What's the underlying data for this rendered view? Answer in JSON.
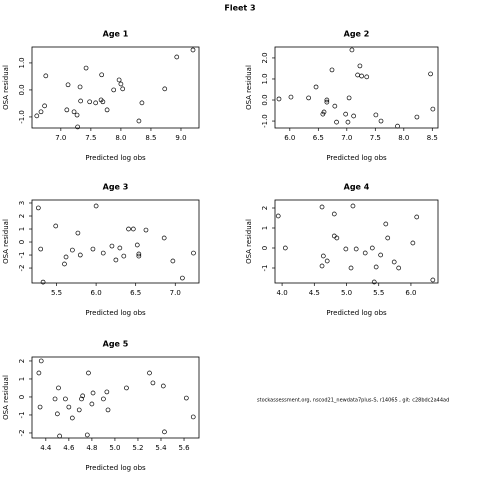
{
  "title": "Fleet 3",
  "footer": "stockassessment.org, nscod21_newdata7plus-S, r14065 , git: c28bdc2a44ad",
  "chart_data": [
    {
      "type": "scatter",
      "title": "Age 1",
      "x_label": "Predicted log obs",
      "y_label": "OSA residual",
      "color": "#000000",
      "x": [
        6.6,
        6.67,
        6.73,
        6.75,
        7.1,
        7.12,
        7.22,
        7.27,
        7.28,
        7.32,
        7.33,
        7.42,
        7.48,
        7.58,
        7.67,
        7.68,
        7.7,
        7.77,
        7.88,
        7.97,
        8.0,
        8.03,
        8.3,
        8.35,
        8.73,
        8.93,
        9.2
      ],
      "y": [
        -0.96,
        -0.81,
        -0.59,
        0.52,
        -0.74,
        0.19,
        -0.81,
        -0.93,
        -1.37,
        0.11,
        -0.41,
        0.81,
        -0.44,
        -0.48,
        -0.37,
        0.56,
        -0.44,
        -0.74,
        0,
        0.37,
        0.22,
        0.04,
        -1.15,
        -0.48,
        0.04,
        1.22,
        1.48
      ],
      "xlim": [
        6.52,
        9.3
      ],
      "ylim": [
        -1.41,
        1.59
      ],
      "xticks": [
        {
          "value": 7,
          "label": "7.0"
        },
        7.5,
        {
          "value": 8,
          "label": "8.0"
        },
        8.5,
        {
          "value": 9,
          "label": "9.0"
        }
      ],
      "yticks": [
        {
          "value": -1,
          "label": "-1.0"
        },
        {
          "value": 0,
          "label": "0.0"
        },
        {
          "value": 1,
          "label": "1.0"
        }
      ]
    },
    {
      "type": "scatter",
      "title": "Age 2",
      "x_label": "Predicted log obs",
      "y_label": "OSA residual",
      "color": "#000000",
      "x": [
        5.81,
        6.02,
        6.33,
        6.46,
        6.58,
        6.6,
        6.65,
        6.65,
        6.74,
        6.79,
        6.82,
        6.98,
        7.02,
        7.04,
        7.09,
        7.12,
        7.19,
        7.23,
        7.26,
        7.35,
        7.51,
        7.6,
        7.89,
        8.23,
        8.47,
        8.51
      ],
      "y": [
        0.05,
        0.14,
        0.1,
        0.62,
        -0.67,
        -0.57,
        0,
        -0.1,
        1.43,
        -0.29,
        -1.05,
        -0.67,
        -1.05,
        0.1,
        2.38,
        -0.76,
        1.19,
        1.62,
        1.14,
        1.1,
        -0.71,
        -1.0,
        -1.24,
        -0.81,
        1.24,
        -0.43
      ],
      "xlim": [
        5.74,
        8.6
      ],
      "ylim": [
        -1.33,
        2.52
      ],
      "xticks": [
        {
          "value": 6,
          "label": "6.0"
        },
        6.5,
        {
          "value": 7,
          "label": "7.0"
        },
        7.5,
        {
          "value": 8,
          "label": "8.0"
        },
        8.5
      ],
      "yticks": [
        {
          "value": -1,
          "label": "-1.0"
        },
        {
          "value": 0,
          "label": "0.0"
        },
        {
          "value": 1,
          "label": "1.0"
        },
        {
          "value": 2,
          "label": "2.0"
        }
      ]
    },
    {
      "type": "scatter",
      "title": "Age 3",
      "x_label": "Predicted log obs",
      "y_label": "OSA residual",
      "color": "#000000",
      "x": [
        5.27,
        5.3,
        5.33,
        5.49,
        5.6,
        5.62,
        5.7,
        5.77,
        5.8,
        5.96,
        6.0,
        6.09,
        6.2,
        6.25,
        6.3,
        6.35,
        6.41,
        6.47,
        6.52,
        6.54,
        6.54,
        6.63,
        6.86,
        6.97,
        7.09,
        7.23
      ],
      "y": [
        2.62,
        -0.54,
        -3.08,
        1.23,
        -1.69,
        -1.15,
        -0.62,
        0.69,
        -1.0,
        -0.54,
        2.77,
        -0.85,
        -0.31,
        -1.38,
        -0.46,
        -1.08,
        1.0,
        1.0,
        -0.23,
        -0.92,
        -1.08,
        0.92,
        0.31,
        -1.46,
        -2.77,
        -0.85
      ],
      "xlim": [
        5.19,
        7.3
      ],
      "ylim": [
        -3.15,
        3.23
      ],
      "xticks": [
        5.5,
        {
          "value": 6,
          "label": "6.0"
        },
        6.5,
        {
          "value": 7,
          "label": "7.0"
        }
      ],
      "yticks": [
        -2,
        -1,
        0,
        1,
        2,
        3
      ]
    },
    {
      "type": "scatter",
      "title": "Age 4",
      "x_label": "Predicted log obs",
      "y_label": "OSA residual",
      "color": "#000000",
      "x": [
        3.94,
        4.05,
        4.62,
        4.62,
        4.64,
        4.7,
        4.81,
        4.81,
        4.85,
        4.99,
        5.07,
        5.1,
        5.15,
        5.29,
        5.4,
        5.43,
        5.46,
        5.53,
        5.61,
        5.64,
        5.74,
        5.81,
        6.03,
        6.09,
        6.34
      ],
      "y": [
        1.6,
        0,
        2.05,
        -0.9,
        -0.4,
        -0.65,
        1.7,
        0.6,
        0.5,
        -0.05,
        -1.0,
        2.1,
        -0.05,
        -0.25,
        0,
        -1.7,
        -0.95,
        -0.35,
        1.2,
        0.5,
        -0.7,
        -1.0,
        0.25,
        1.55,
        -1.6
      ],
      "xlim": [
        3.89,
        6.42
      ],
      "ylim": [
        -1.75,
        2.4
      ],
      "xticks": [
        {
          "value": 4,
          "label": "4.0"
        },
        4.5,
        {
          "value": 5,
          "label": "5.0"
        },
        5.5,
        {
          "value": 6,
          "label": "6.0"
        }
      ],
      "yticks": [
        -1,
        0,
        1,
        2
      ]
    },
    {
      "type": "scatter",
      "title": "Age 5",
      "x_label": "Predicted log obs",
      "y_label": "OSA residual",
      "color": "#000000",
      "x": [
        4.34,
        4.36,
        4.35,
        4.48,
        4.51,
        4.5,
        4.52,
        4.57,
        4.6,
        4.63,
        4.69,
        4.71,
        4.72,
        4.76,
        4.77,
        4.8,
        4.81,
        4.9,
        4.93,
        4.94,
        5.1,
        5.3,
        5.33,
        5.42,
        5.43,
        5.62,
        5.68
      ],
      "y": [
        1.33,
        2.0,
        -0.56,
        -0.11,
        0.5,
        -0.94,
        -2.17,
        -0.11,
        -0.56,
        -1.17,
        -0.72,
        -0.11,
        0.06,
        -2.11,
        1.33,
        -0.39,
        0.22,
        -0.11,
        0.28,
        -0.72,
        0.5,
        1.33,
        0.78,
        0.61,
        -1.94,
        -0.06,
        -1.11
      ],
      "xlim": [
        4.28,
        5.73
      ],
      "ylim": [
        -2.28,
        2.22
      ],
      "xticks": [
        4.4,
        4.6,
        4.8,
        {
          "value": 5,
          "label": "5.0"
        },
        5.2,
        5.4,
        5.6
      ],
      "yticks": [
        -2,
        -1,
        0,
        1,
        2
      ]
    }
  ]
}
